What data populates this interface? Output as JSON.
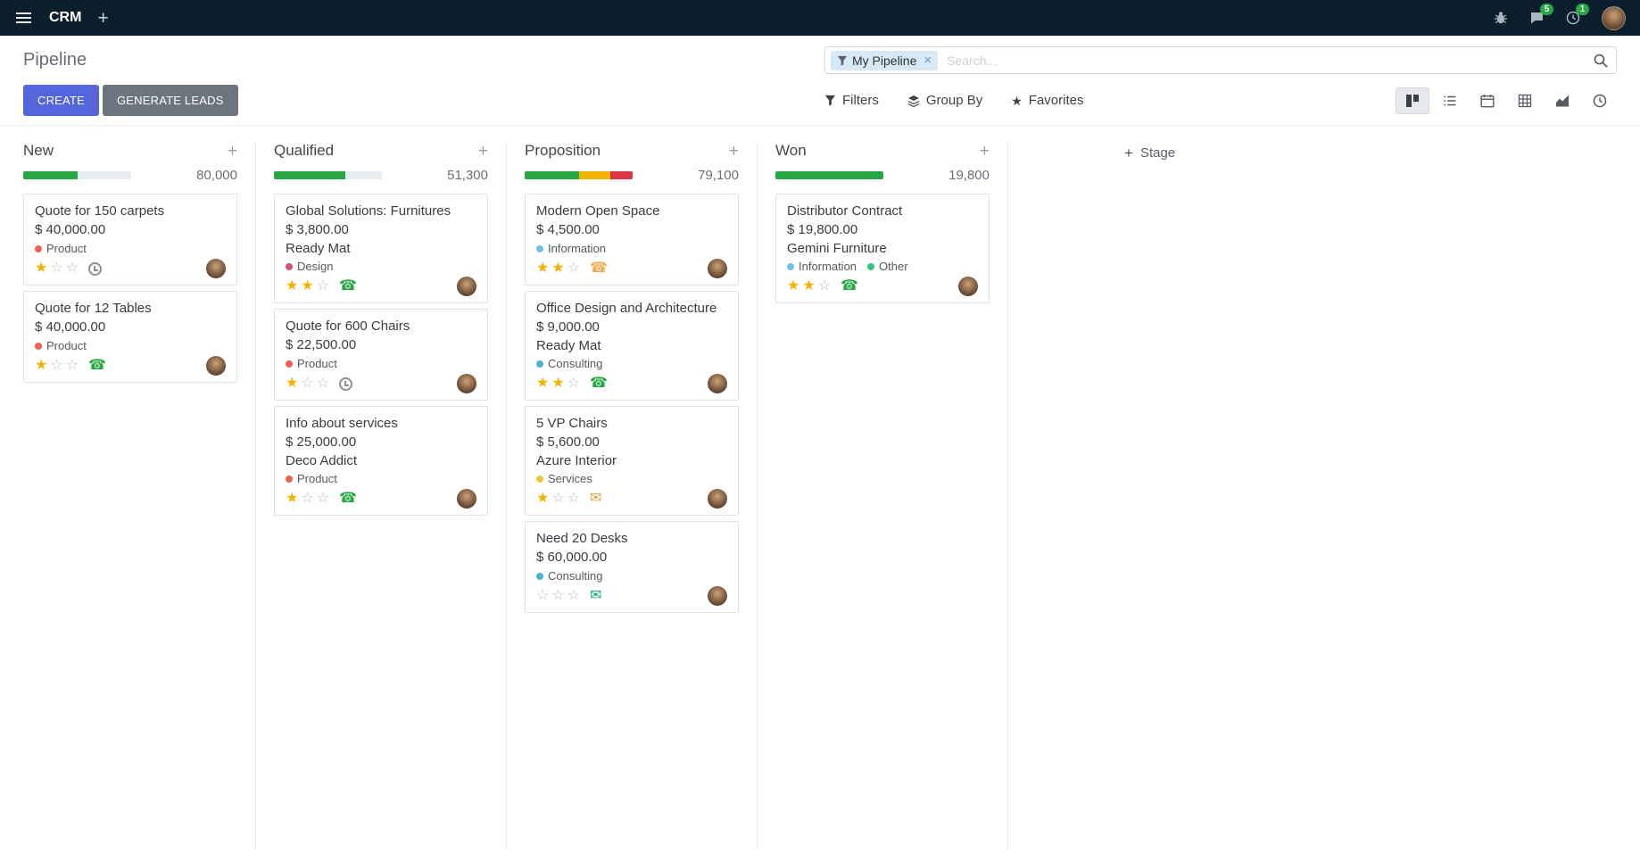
{
  "colors": {
    "topbar_bg": "#0b1e2b",
    "primary_button": "#5566dd",
    "secondary_button": "#6c757d",
    "notification_badge": "#28a745",
    "star_filled": "#f2b300",
    "progress_green": "#28a745",
    "progress_yellow": "#f0b400",
    "progress_red": "#dc3545"
  },
  "icons": {
    "plus_glyph": "+",
    "close_glyph": "×",
    "star_filled_glyph": "★",
    "star_empty_glyph": "☆",
    "phone_glyph": "☎",
    "mail_glyph": "✉"
  },
  "topbar": {
    "app_name": "CRM",
    "messages_badge": "5",
    "activities_badge": "1"
  },
  "control_panel": {
    "title": "Pipeline",
    "create_label": "CREATE",
    "generate_leads_label": "GENERATE LEADS",
    "search": {
      "facet": "My Pipeline",
      "placeholder": "Search..."
    },
    "tools": {
      "filters": "Filters",
      "group_by": "Group By",
      "favorites": "Favorites"
    },
    "view_switcher": [
      "kanban",
      "list",
      "calendar",
      "pivot",
      "graph",
      "activity"
    ]
  },
  "kanban": {
    "add_stage_label": "Stage",
    "columns": [
      {
        "name": "New",
        "total": "80,000",
        "progress": [
          {
            "color": "#28a745",
            "pct": 50
          }
        ],
        "cards": [
          {
            "title": "Quote for 150 carpets",
            "amount": "$ 40,000.00",
            "tags": [
              {
                "label": "Product",
                "color": "#f06050"
              }
            ],
            "stars": 1,
            "activity": {
              "type": "clock",
              "color": "#8f8f8f"
            }
          },
          {
            "title": "Quote for 12 Tables",
            "amount": "$ 40,000.00",
            "tags": [
              {
                "label": "Product",
                "color": "#f06050"
              }
            ],
            "stars": 1,
            "activity": {
              "type": "phone",
              "color": "#28a745"
            }
          }
        ]
      },
      {
        "name": "Qualified",
        "total": "51,300",
        "progress": [
          {
            "color": "#28a745",
            "pct": 66
          }
        ],
        "cards": [
          {
            "title": "Global Solutions: Furnitures",
            "amount": "$ 3,800.00",
            "partner": "Ready Mat",
            "tags": [
              {
                "label": "Design",
                "color": "#d6507a"
              }
            ],
            "stars": 2,
            "activity": {
              "type": "phone",
              "color": "#28a745"
            }
          },
          {
            "title": "Quote for 600 Chairs",
            "amount": "$ 22,500.00",
            "tags": [
              {
                "label": "Product",
                "color": "#f06050"
              }
            ],
            "stars": 1,
            "activity": {
              "type": "clock",
              "color": "#8f8f8f"
            }
          },
          {
            "title": "Info about services",
            "amount": "$ 25,000.00",
            "partner": "Deco Addict",
            "tags": [
              {
                "label": "Product",
                "color": "#f06050"
              }
            ],
            "stars": 1,
            "activity": {
              "type": "phone",
              "color": "#28a745"
            }
          }
        ]
      },
      {
        "name": "Proposition",
        "total": "79,100",
        "progress": [
          {
            "color": "#28a745",
            "pct": 50
          },
          {
            "color": "#f0b400",
            "pct": 29
          },
          {
            "color": "#dc3545",
            "pct": 21
          }
        ],
        "cards": [
          {
            "title": "Modern Open Space",
            "amount": "$ 4,500.00",
            "tags": [
              {
                "label": "Information",
                "color": "#6cc1ed"
              }
            ],
            "stars": 2,
            "activity": {
              "type": "phone",
              "color": "#f0ad4e"
            }
          },
          {
            "title": "Office Design and Architecture",
            "amount": "$ 9,000.00",
            "partner": "Ready Mat",
            "tags": [
              {
                "label": "Consulting",
                "color": "#49b6c6"
              }
            ],
            "stars": 2,
            "activity": {
              "type": "phone",
              "color": "#28a745"
            }
          },
          {
            "title": "5 VP Chairs",
            "amount": "$ 5,600.00",
            "partner": "Azure Interior",
            "tags": [
              {
                "label": "Services",
                "color": "#ebc73c"
              }
            ],
            "stars": 1,
            "activity": {
              "type": "mail",
              "color": "#e7a23c"
            }
          },
          {
            "title": "Need 20 Desks",
            "amount": "$ 60,000.00",
            "tags": [
              {
                "label": "Consulting",
                "color": "#49b6c6"
              }
            ],
            "stars": 0,
            "activity": {
              "type": "mail",
              "color": "#0ea573"
            }
          }
        ]
      },
      {
        "name": "Won",
        "total": "19,800",
        "progress": [
          {
            "color": "#28a745",
            "pct": 100
          }
        ],
        "cards": [
          {
            "title": "Distributor Contract",
            "amount": "$ 19,800.00",
            "partner": "Gemini Furniture",
            "tags": [
              {
                "label": "Information",
                "color": "#6cc1ed"
              },
              {
                "label": "Other",
                "color": "#30c381"
              }
            ],
            "stars": 2,
            "activity": {
              "type": "phone",
              "color": "#28a745"
            }
          }
        ]
      }
    ]
  }
}
